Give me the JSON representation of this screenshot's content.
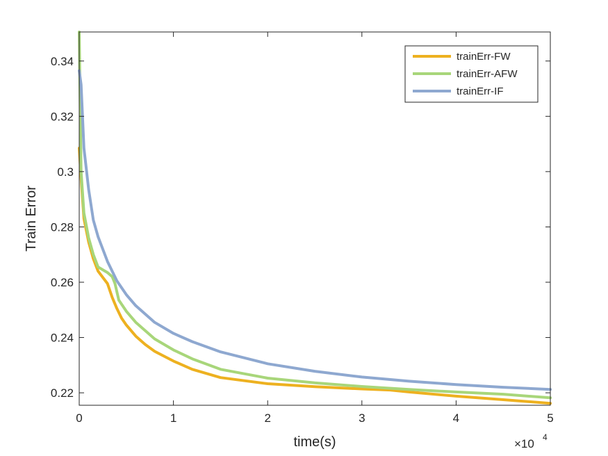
{
  "chart_data": {
    "type": "line",
    "title": "",
    "xlabel": "time(s)",
    "ylabel": "Train Error",
    "x_multiplier_label": "×10",
    "x_multiplier_exponent": "4",
    "xlim": [
      0,
      5
    ],
    "ylim": [
      0.2155,
      0.3505
    ],
    "xticks": [
      0,
      1,
      2,
      3,
      4,
      5
    ],
    "xtick_labels": [
      "0",
      "1",
      "2",
      "3",
      "4",
      "5"
    ],
    "yticks": [
      0.22,
      0.24,
      0.26,
      0.28,
      0.3,
      0.32,
      0.34
    ],
    "ytick_labels": [
      "0.22",
      "0.24",
      "0.26",
      "0.28",
      "0.3",
      "0.32",
      "0.34"
    ],
    "grid": false,
    "legend_position": "top-right",
    "series": [
      {
        "name": "trainErr-FW",
        "color": "#EDB120",
        "x": [
          0,
          0.02,
          0.05,
          0.1,
          0.15,
          0.2,
          0.3,
          0.35,
          0.4,
          0.45,
          0.5,
          0.6,
          0.7,
          0.8,
          1.0,
          1.2,
          1.5,
          2.0,
          2.5,
          3.0,
          3.3,
          3.5,
          4.0,
          4.5,
          5.0
        ],
        "y": [
          0.3085,
          0.2975,
          0.283,
          0.2745,
          0.2685,
          0.264,
          0.2595,
          0.2545,
          0.2505,
          0.247,
          0.2445,
          0.2405,
          0.2375,
          0.235,
          0.2315,
          0.2285,
          0.2255,
          0.2233,
          0.2222,
          0.2214,
          0.221,
          0.2203,
          0.2188,
          0.2175,
          0.2162
        ]
      },
      {
        "name": "trainErr-AFW",
        "color": "#A8D67A",
        "x": [
          0,
          0.02,
          0.05,
          0.1,
          0.15,
          0.2,
          0.3,
          0.35,
          0.38,
          0.42,
          0.5,
          0.6,
          0.8,
          1.0,
          1.2,
          1.5,
          2.0,
          2.5,
          3.0,
          3.5,
          4.0,
          4.5,
          5.0
        ],
        "y": [
          0.3505,
          0.3,
          0.285,
          0.276,
          0.27,
          0.2655,
          0.2635,
          0.262,
          0.2595,
          0.2535,
          0.2495,
          0.2455,
          0.2395,
          0.2355,
          0.2323,
          0.2285,
          0.2253,
          0.2236,
          0.2223,
          0.2212,
          0.2203,
          0.2195,
          0.2182
        ]
      },
      {
        "name": "trainErr-IF",
        "color": "#8EA8D0",
        "x": [
          0,
          0.02,
          0.05,
          0.1,
          0.15,
          0.2,
          0.3,
          0.4,
          0.5,
          0.6,
          0.8,
          1.0,
          1.2,
          1.5,
          2.0,
          2.5,
          3.0,
          3.5,
          4.0,
          4.5,
          5.0
        ],
        "y": [
          0.3365,
          0.3315,
          0.3085,
          0.2935,
          0.2825,
          0.2765,
          0.2675,
          0.2605,
          0.2555,
          0.2515,
          0.2455,
          0.2415,
          0.2385,
          0.2348,
          0.2305,
          0.2278,
          0.2257,
          0.2242,
          0.223,
          0.222,
          0.2212
        ]
      }
    ]
  }
}
